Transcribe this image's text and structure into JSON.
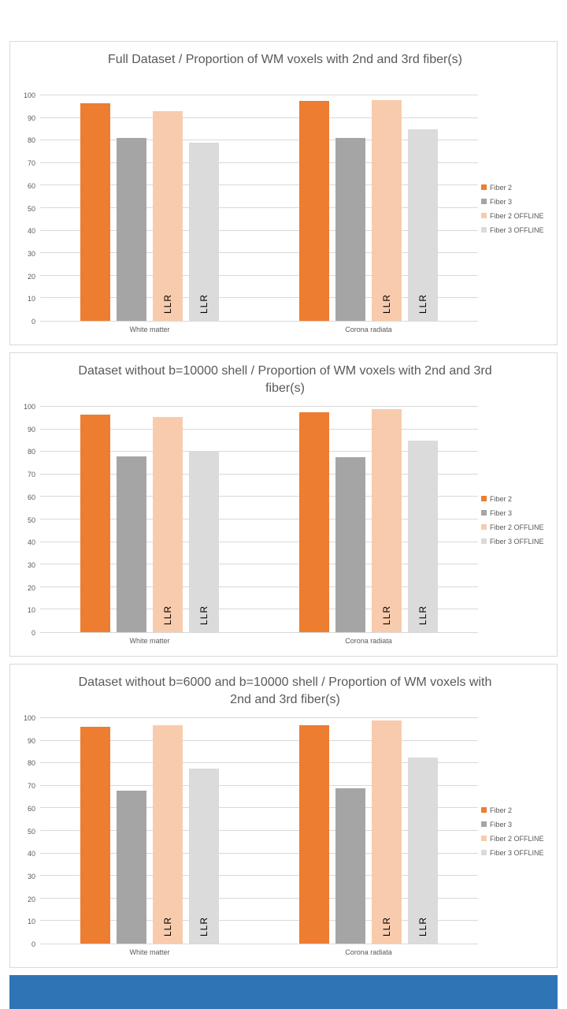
{
  "page": {
    "footer_color": "#2E75B6"
  },
  "chart_data": [
    {
      "type": "bar",
      "title": "Full Dataset / Proportion of WM voxels with 2nd and 3rd fiber(s)",
      "categories": [
        "White matter",
        "Corona radiata"
      ],
      "series": [
        {
          "name": "Fiber 2",
          "color": "#ED7D31",
          "values": [
            96.5,
            97.5
          ]
        },
        {
          "name": "Fiber 3",
          "color": "#A5A5A5",
          "values": [
            81,
            81
          ]
        },
        {
          "name": "Fiber 2 OFFLINE",
          "color": "#F8CBAD",
          "values": [
            93,
            98
          ],
          "bar_label": "LLR"
        },
        {
          "name": "Fiber 3 OFFLINE",
          "color": "#DBDBDB",
          "values": [
            79,
            85
          ],
          "bar_label": "LLR"
        }
      ],
      "ylim": [
        0,
        100
      ],
      "yticks": [
        0,
        10,
        20,
        30,
        40,
        50,
        60,
        70,
        80,
        90,
        100
      ],
      "grid": true,
      "legend_position": "right"
    },
    {
      "type": "bar",
      "title": "Dataset without b=10000 shell / Proportion of WM voxels with 2nd and 3rd fiber(s)",
      "categories": [
        "White matter",
        "Corona radiata"
      ],
      "series": [
        {
          "name": "Fiber 2",
          "color": "#ED7D31",
          "values": [
            96.5,
            97.5
          ]
        },
        {
          "name": "Fiber 3",
          "color": "#A5A5A5",
          "values": [
            78,
            77.5
          ]
        },
        {
          "name": "Fiber 2 OFFLINE",
          "color": "#F8CBAD",
          "values": [
            95.5,
            99
          ],
          "bar_label": "LLR"
        },
        {
          "name": "Fiber 3 OFFLINE",
          "color": "#DBDBDB",
          "values": [
            80.5,
            85
          ],
          "bar_label": "LLR"
        }
      ],
      "ylim": [
        0,
        100
      ],
      "yticks": [
        0,
        10,
        20,
        30,
        40,
        50,
        60,
        70,
        80,
        90,
        100
      ],
      "grid": true,
      "legend_position": "right"
    },
    {
      "type": "bar",
      "title": "Dataset without b=6000 and b=10000 shell / Proportion of WM voxels with 2nd and 3rd fiber(s)",
      "categories": [
        "White matter",
        "Corona radiata"
      ],
      "series": [
        {
          "name": "Fiber 2",
          "color": "#ED7D31",
          "values": [
            96,
            97
          ]
        },
        {
          "name": "Fiber 3",
          "color": "#A5A5A5",
          "values": [
            68,
            69
          ]
        },
        {
          "name": "Fiber 2 OFFLINE",
          "color": "#F8CBAD",
          "values": [
            97,
            99
          ],
          "bar_label": "LLR"
        },
        {
          "name": "Fiber 3 OFFLINE",
          "color": "#DBDBDB",
          "values": [
            77.5,
            82.5
          ],
          "bar_label": "LLR"
        }
      ],
      "ylim": [
        0,
        100
      ],
      "yticks": [
        0,
        10,
        20,
        30,
        40,
        50,
        60,
        70,
        80,
        90,
        100
      ],
      "grid": true,
      "legend_position": "right"
    }
  ]
}
